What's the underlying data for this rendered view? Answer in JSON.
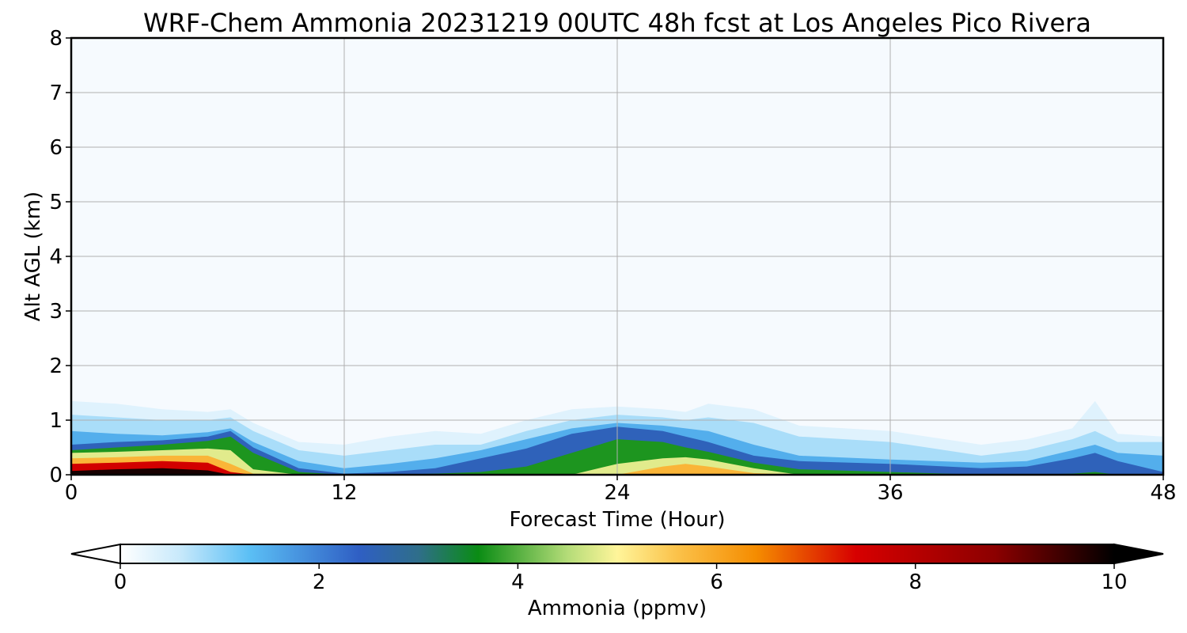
{
  "chart_data": {
    "type": "heatmap",
    "title": "WRF-Chem Ammonia  20231219 00UTC 48h fcst at Los Angeles Pico Rivera",
    "xlabel": "Forecast Time (Hour)",
    "ylabel": "Alt AGL (km)",
    "xlim": [
      0,
      48
    ],
    "ylim": [
      0,
      8
    ],
    "x_ticks": [
      "0",
      "12",
      "24",
      "36",
      "48"
    ],
    "y_ticks": [
      "0",
      "1",
      "2",
      "3",
      "4",
      "5",
      "6",
      "7",
      "8"
    ],
    "grid": true,
    "colorbar": {
      "label": "Ammonia  (ppmv)",
      "range": [
        0,
        10
      ],
      "ticks": [
        "0",
        "2",
        "4",
        "6",
        "8",
        "10"
      ],
      "extend": "both",
      "stops": [
        {
          "v": 0.0,
          "c": "#ffffff"
        },
        {
          "v": 0.6,
          "c": "#c8e9fb"
        },
        {
          "v": 1.3,
          "c": "#5bbff5"
        },
        {
          "v": 2.4,
          "c": "#2f5fc4"
        },
        {
          "v": 3.0,
          "c": "#2f6e8a"
        },
        {
          "v": 3.6,
          "c": "#0a8c14"
        },
        {
          "v": 4.5,
          "c": "#b4dc78"
        },
        {
          "v": 5.0,
          "c": "#fff59a"
        },
        {
          "v": 5.6,
          "c": "#fbc24a"
        },
        {
          "v": 6.4,
          "c": "#f58c00"
        },
        {
          "v": 7.4,
          "c": "#d70000"
        },
        {
          "v": 8.8,
          "c": "#8c0000"
        },
        {
          "v": 10.0,
          "c": "#000000"
        }
      ]
    },
    "profiles": {
      "hours": [
        0,
        2,
        4,
        6,
        7,
        8,
        10,
        12,
        14,
        16,
        18,
        20,
        22,
        24,
        26,
        27,
        28,
        30,
        32,
        36,
        40,
        42,
        44,
        45,
        46,
        48
      ],
      "top_km": [
        1.35,
        1.3,
        1.2,
        1.15,
        1.2,
        0.95,
        0.6,
        0.55,
        0.7,
        0.8,
        0.75,
        1.0,
        1.2,
        1.25,
        1.2,
        1.15,
        1.3,
        1.2,
        0.9,
        0.8,
        0.55,
        0.65,
        0.85,
        1.35,
        0.75,
        0.7
      ],
      "layers": [
        {
          "v": 0.8,
          "h": [
            1.1,
            1.05,
            1.0,
            1.0,
            1.05,
            0.8,
            0.45,
            0.35,
            0.45,
            0.55,
            0.55,
            0.8,
            1.0,
            1.1,
            1.05,
            1.0,
            1.05,
            0.95,
            0.7,
            0.6,
            0.35,
            0.45,
            0.65,
            0.8,
            0.6,
            0.6
          ]
        },
        {
          "v": 1.5,
          "h": [
            0.8,
            0.75,
            0.72,
            0.78,
            0.85,
            0.6,
            0.25,
            0.12,
            0.2,
            0.3,
            0.45,
            0.65,
            0.85,
            0.95,
            0.9,
            0.85,
            0.8,
            0.55,
            0.35,
            0.28,
            0.22,
            0.25,
            0.45,
            0.55,
            0.4,
            0.35
          ]
        },
        {
          "v": 2.5,
          "h": [
            0.55,
            0.6,
            0.63,
            0.7,
            0.8,
            0.5,
            0.12,
            0.02,
            0.05,
            0.12,
            0.3,
            0.48,
            0.75,
            0.88,
            0.8,
            0.7,
            0.6,
            0.35,
            0.25,
            0.2,
            0.12,
            0.15,
            0.3,
            0.4,
            0.25,
            0.05
          ]
        },
        {
          "v": 3.7,
          "h": [
            0.45,
            0.5,
            0.55,
            0.62,
            0.7,
            0.4,
            0.05,
            0.0,
            0.0,
            0.02,
            0.05,
            0.15,
            0.4,
            0.65,
            0.6,
            0.5,
            0.42,
            0.22,
            0.1,
            0.05,
            0.0,
            0.0,
            0.02,
            0.05,
            0.0,
            0.0
          ]
        },
        {
          "v": 4.8,
          "h": [
            0.4,
            0.42,
            0.45,
            0.48,
            0.45,
            0.1,
            0.0,
            0.0,
            0.0,
            0.0,
            0.0,
            0.0,
            0.0,
            0.2,
            0.3,
            0.32,
            0.28,
            0.12,
            0.0,
            0.0,
            0.0,
            0.0,
            0.0,
            0.0,
            0.0,
            0.0
          ]
        },
        {
          "v": 5.8,
          "h": [
            0.3,
            0.32,
            0.35,
            0.35,
            0.2,
            0.02,
            0.0,
            0.0,
            0.0,
            0.0,
            0.0,
            0.0,
            0.0,
            0.0,
            0.15,
            0.2,
            0.15,
            0.03,
            0.0,
            0.0,
            0.0,
            0.0,
            0.0,
            0.0,
            0.0,
            0.0
          ]
        },
        {
          "v": 7.5,
          "h": [
            0.2,
            0.22,
            0.25,
            0.22,
            0.05,
            0.0,
            0.0,
            0.0,
            0.0,
            0.0,
            0.0,
            0.0,
            0.0,
            0.0,
            0.0,
            0.0,
            0.0,
            0.0,
            0.0,
            0.0,
            0.0,
            0.0,
            0.0,
            0.0,
            0.0,
            0.0
          ]
        },
        {
          "v": 9.8,
          "h": [
            0.07,
            0.1,
            0.12,
            0.08,
            0.0,
            0.0,
            0.0,
            0.0,
            0.0,
            0.0,
            0.0,
            0.0,
            0.0,
            0.0,
            0.0,
            0.0,
            0.0,
            0.0,
            0.0,
            0.0,
            0.0,
            0.0,
            0.0,
            0.0,
            0.0,
            0.0
          ]
        }
      ]
    }
  }
}
